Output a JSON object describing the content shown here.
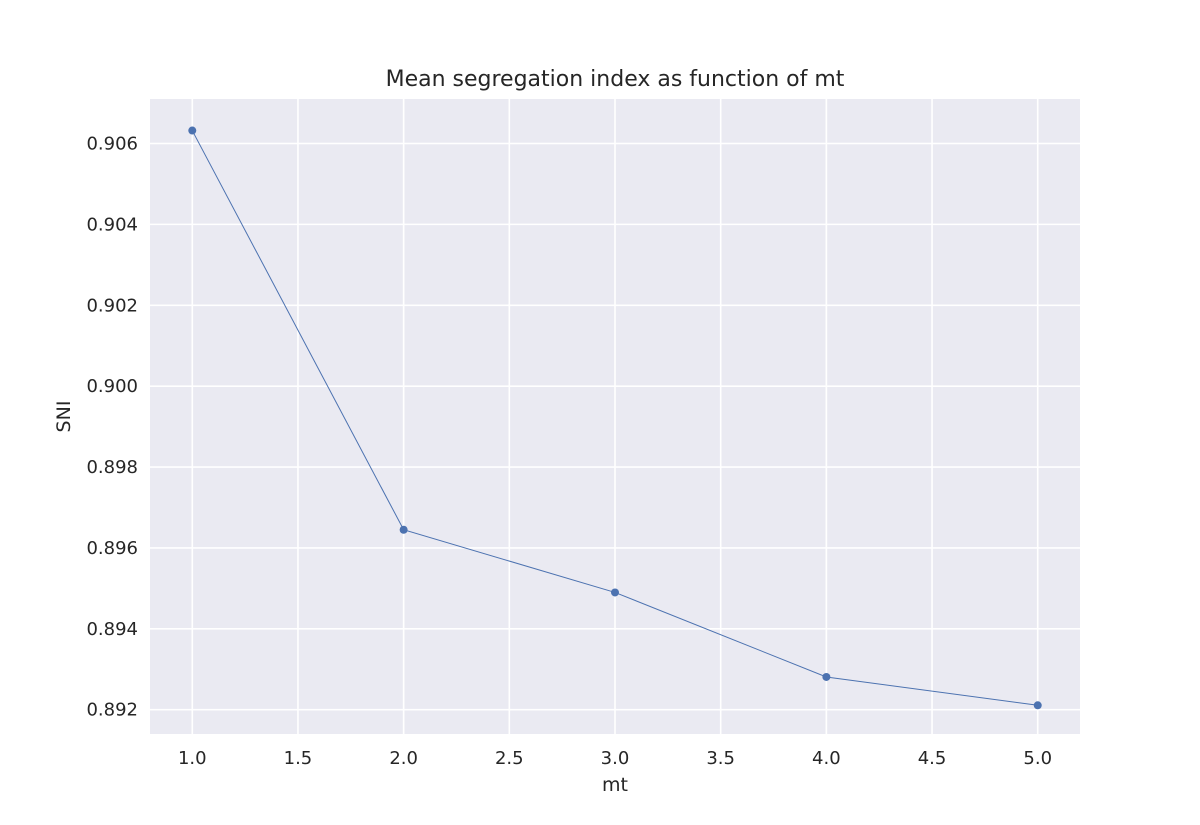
{
  "chart_data": {
    "type": "line",
    "title": "Mean segregation index as function of mt",
    "xlabel": "mt",
    "ylabel": "SNI",
    "x": [
      1.0,
      2.0,
      3.0,
      4.0,
      5.0
    ],
    "series": [
      {
        "values": [
          0.90632,
          0.89645,
          0.8949,
          0.89281,
          0.89211
        ]
      }
    ],
    "xlim": [
      0.8,
      5.2
    ],
    "ylim": [
      0.8914,
      0.9071
    ],
    "xticks": [
      1.0,
      1.5,
      2.0,
      2.5,
      3.0,
      3.5,
      4.0,
      4.5,
      5.0
    ],
    "xtick_labels": [
      "1.0",
      "1.5",
      "2.0",
      "2.5",
      "3.0",
      "3.5",
      "4.0",
      "4.5",
      "5.0"
    ],
    "yticks": [
      0.892,
      0.894,
      0.896,
      0.898,
      0.9,
      0.902,
      0.904,
      0.906
    ],
    "ytick_labels": [
      "0.892",
      "0.894",
      "0.896",
      "0.898",
      "0.900",
      "0.902",
      "0.904",
      "0.906"
    ],
    "grid": true,
    "colors": {
      "background": "#eaeaf2",
      "grid": "#ffffff",
      "line": "#4c72b0"
    }
  }
}
